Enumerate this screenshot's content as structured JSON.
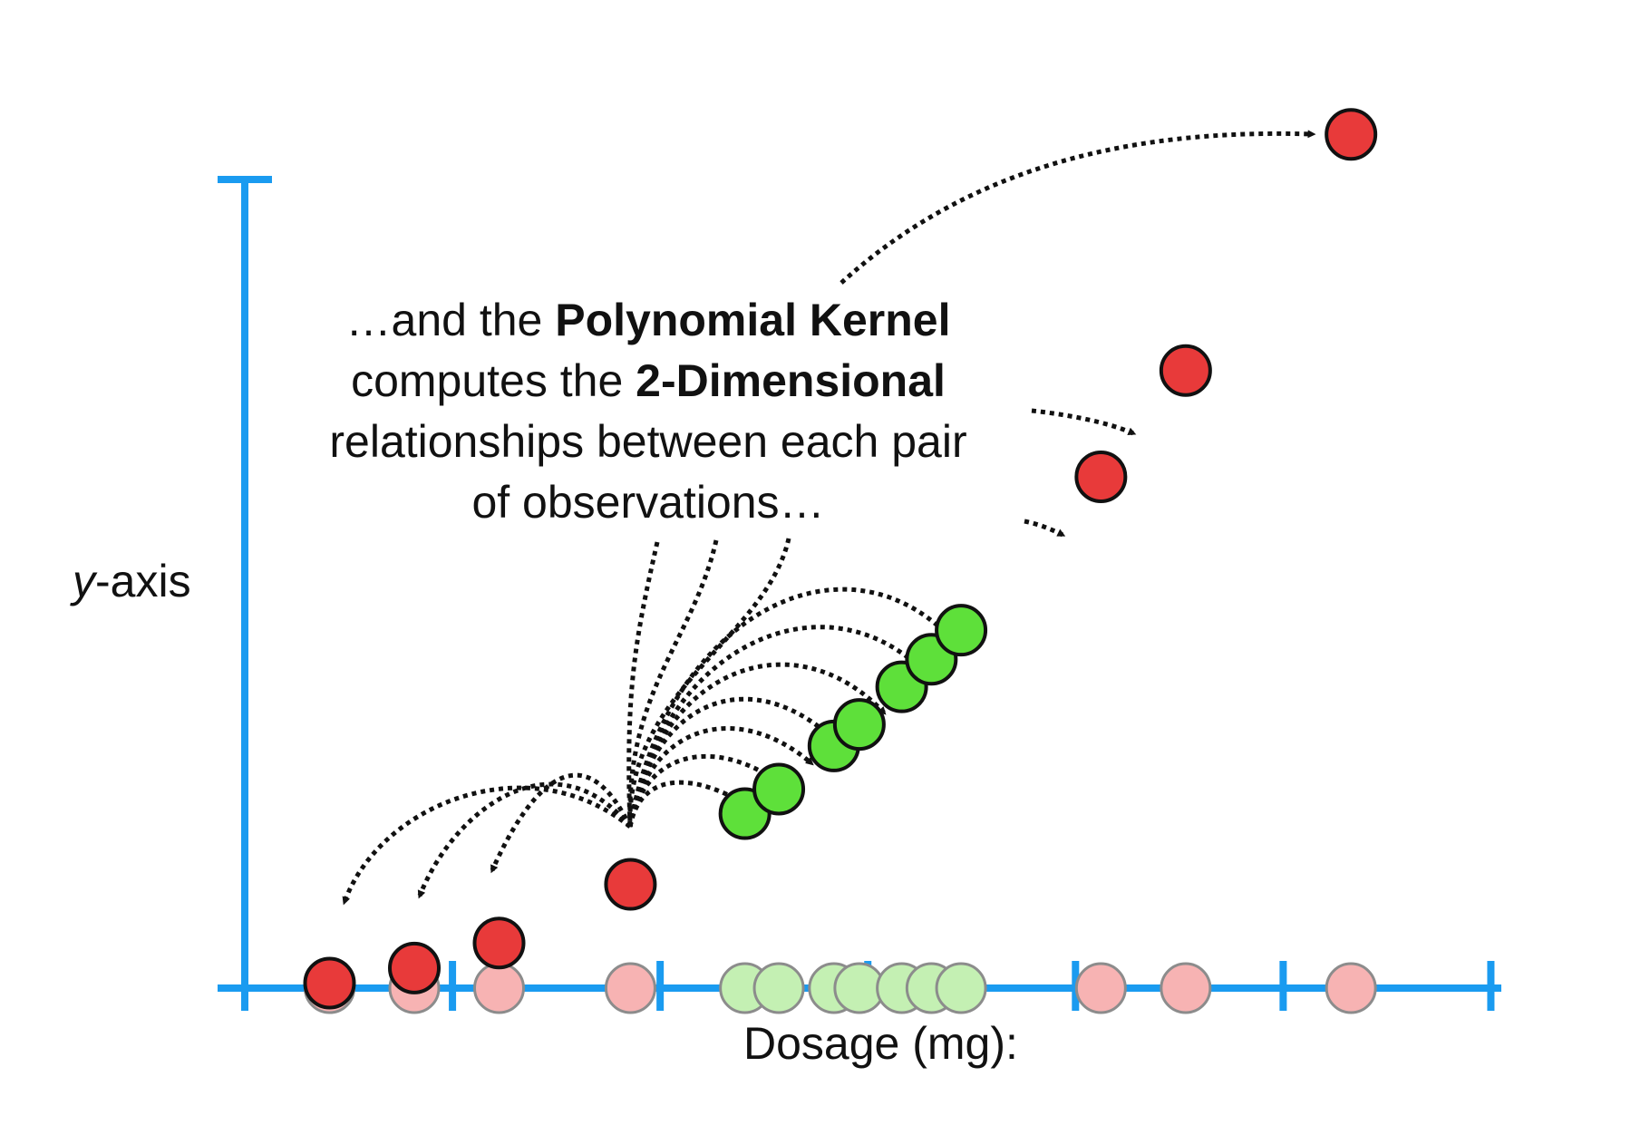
{
  "caption": {
    "line1_pre": "…and the ",
    "line1_bold": "Polynomial Kernel",
    "line2_pre": "computes the ",
    "line2_bold": "2-Dimensional",
    "line3": "relationships between each pair",
    "line4": "of observations…"
  },
  "axes": {
    "y_label_var": "y",
    "y_label_rest": "-axis",
    "x_label": "Dosage (mg):"
  },
  "colors": {
    "axis": "#1a9bf0",
    "red": "#e83a3a",
    "red_faded": "#f7b3b3",
    "green": "#5ee03a",
    "green_faded": "#c4f0b3",
    "arrow": "#111111"
  },
  "observations": [
    {
      "class": "red",
      "x": 1,
      "y": 1
    },
    {
      "class": "red",
      "x": 2,
      "y": 4
    },
    {
      "class": "red",
      "x": 3,
      "y": 9
    },
    {
      "class": "red",
      "x": 4.55,
      "y": 20.7
    },
    {
      "class": "green",
      "x": 5.9,
      "y": 34.8
    },
    {
      "class": "green",
      "x": 6.3,
      "y": 39.7
    },
    {
      "class": "green",
      "x": 6.95,
      "y": 48.3
    },
    {
      "class": "green",
      "x": 7.25,
      "y": 52.6
    },
    {
      "class": "green",
      "x": 7.75,
      "y": 60.1
    },
    {
      "class": "green",
      "x": 8.1,
      "y": 65.6
    },
    {
      "class": "green",
      "x": 8.45,
      "y": 71.4
    },
    {
      "class": "red",
      "x": 10.1,
      "y": 102
    },
    {
      "class": "red",
      "x": 11.1,
      "y": 123.2
    },
    {
      "class": "red",
      "x": 13.05,
      "y": 170.3
    }
  ]
}
